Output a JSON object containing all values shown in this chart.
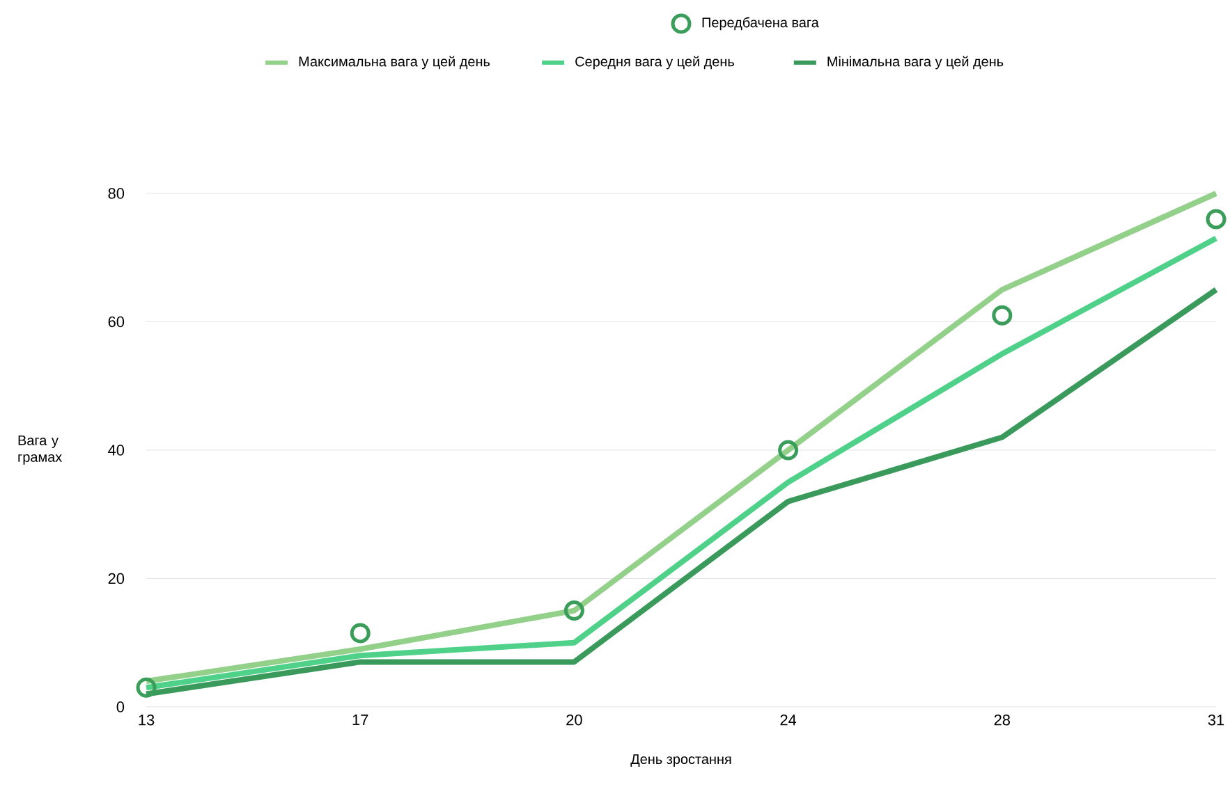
{
  "chart_data": {
    "type": "line",
    "xlabel": "День зростання",
    "ylabel": "Вага у грамах",
    "categories": [
      "13",
      "17",
      "20",
      "24",
      "28",
      "31"
    ],
    "ylim": [
      0,
      80
    ],
    "yticks": [
      0,
      20,
      40,
      60,
      80
    ],
    "grid": "y",
    "legend": "top",
    "series": [
      {
        "name": "Передбачена вага",
        "type": "scatter",
        "marker": "circle",
        "color": "#3a9e5a",
        "values": [
          3,
          11.5,
          15,
          40,
          61,
          76
        ]
      },
      {
        "name": "Максимальна вага у цей день",
        "color": "#93d08a",
        "values": [
          4,
          9,
          15,
          40,
          65,
          80
        ]
      },
      {
        "name": "Середня вага у цей день",
        "color": "#4fd18a",
        "values": [
          3,
          8,
          10,
          35,
          55,
          73
        ]
      },
      {
        "name": "Мінімальна вага у цей день",
        "color": "#3a9a5c",
        "values": [
          2,
          7,
          7,
          32,
          42,
          65
        ]
      }
    ]
  }
}
